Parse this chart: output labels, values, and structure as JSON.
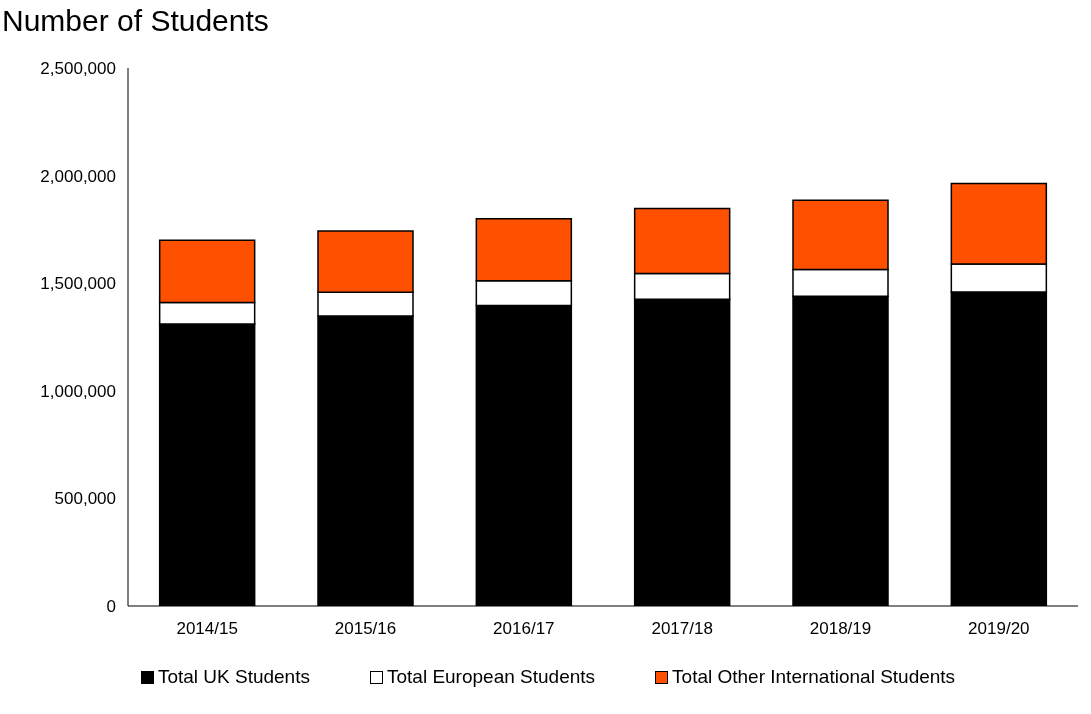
{
  "chart_data": {
    "type": "bar",
    "title": "Number of Students",
    "stacked": true,
    "categories": [
      "2014/15",
      "2015/16",
      "2016/17",
      "2017/18",
      "2018/19",
      "2019/20"
    ],
    "series": [
      {
        "name": "Total UK Students",
        "color": "#000000",
        "values": [
          1310000,
          1348000,
          1396000,
          1425000,
          1439000,
          1459000
        ]
      },
      {
        "name": "Total European Students",
        "color": "#ffffff",
        "values": [
          100000,
          110000,
          115000,
          120000,
          125000,
          130000
        ]
      },
      {
        "name": "Total Other International Students",
        "color": "#ff5000",
        "values": [
          290000,
          285000,
          288000,
          302000,
          322000,
          374000
        ]
      }
    ],
    "ylim": [
      0,
      2500000
    ],
    "yticks": [
      0,
      {
        "value": 500000,
        "label": "500,000"
      },
      {
        "value": 1000000,
        "label": "1,000,000"
      },
      {
        "value": 1500000,
        "label": "1,500,000"
      },
      {
        "value": 2000000,
        "label": "2,000,000"
      },
      {
        "value": 2500000,
        "label": "2,500,000"
      }
    ],
    "grid": false,
    "legend": "bottom"
  }
}
